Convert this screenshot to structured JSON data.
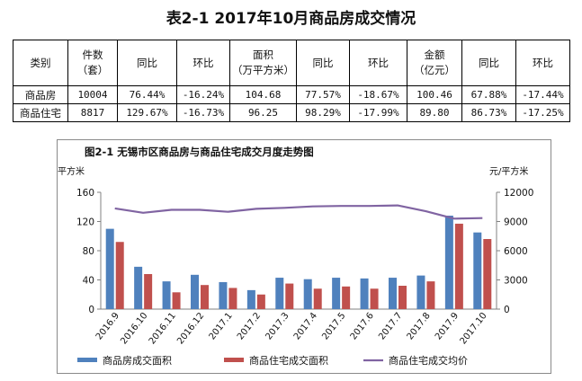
{
  "table": {
    "title": "表2-1 2017年10月商品房成交情况",
    "headers": [
      "类别",
      "件数\n（套）",
      "同比",
      "环比",
      "面积\n（万平方米）",
      "同比",
      "环比",
      "金额\n（亿元）",
      "同比",
      "环比"
    ],
    "rows": [
      [
        "商品房",
        "10004",
        "76.44%",
        "-16.24%",
        "104.68",
        "77.57%",
        "-18.67%",
        "100.46",
        "67.88%",
        "-17.44%"
      ],
      [
        "商品住宅",
        "8817",
        "129.67%",
        "-16.73%",
        "96.25",
        "98.29%",
        "-17.99%",
        "89.80",
        "86.73%",
        "-17.25%"
      ]
    ]
  },
  "chart_data": {
    "type": "bar",
    "title": "图2-1 无锡市区商品房与商品住宅成交月度走势图",
    "ylabel_left": "万平方米",
    "ylabel_right": "元/平方米",
    "ylim_left": [
      0,
      160
    ],
    "ylim_right": [
      0,
      12000
    ],
    "yticks_left": [
      "0",
      "40",
      "80",
      "120",
      "160"
    ],
    "yticks_right": [
      "0",
      "3000",
      "6000",
      "9000",
      "12000"
    ],
    "grid": false,
    "legend_position": "bottom",
    "categories": [
      "2016.9",
      "2016.10",
      "2016.11",
      "2016.12",
      "2017.1",
      "2017.2",
      "2017.3",
      "2017.4",
      "2017.5",
      "2017.6",
      "2017.7",
      "2017.8",
      "2017.9",
      "2017.10"
    ],
    "series": [
      {
        "name": "商品房成交面积",
        "type": "bar",
        "axis": "left",
        "color": "#4F81BD",
        "values": [
          110,
          58,
          38,
          47,
          37,
          26,
          43,
          41,
          43,
          42,
          43,
          46,
          128,
          105
        ]
      },
      {
        "name": "商品住宅成交面积",
        "type": "bar",
        "axis": "left",
        "color": "#C0504D",
        "values": [
          92,
          48,
          23,
          33,
          29,
          20,
          35,
          28,
          31,
          28,
          32,
          38,
          117,
          96
        ]
      },
      {
        "name": "商品住宅成交均价",
        "type": "line",
        "axis": "right",
        "color": "#8064A2",
        "values": [
          10350,
          9900,
          10200,
          10200,
          10000,
          10300,
          10400,
          10550,
          10600,
          10600,
          10650,
          10050,
          9300,
          9350
        ]
      }
    ]
  }
}
